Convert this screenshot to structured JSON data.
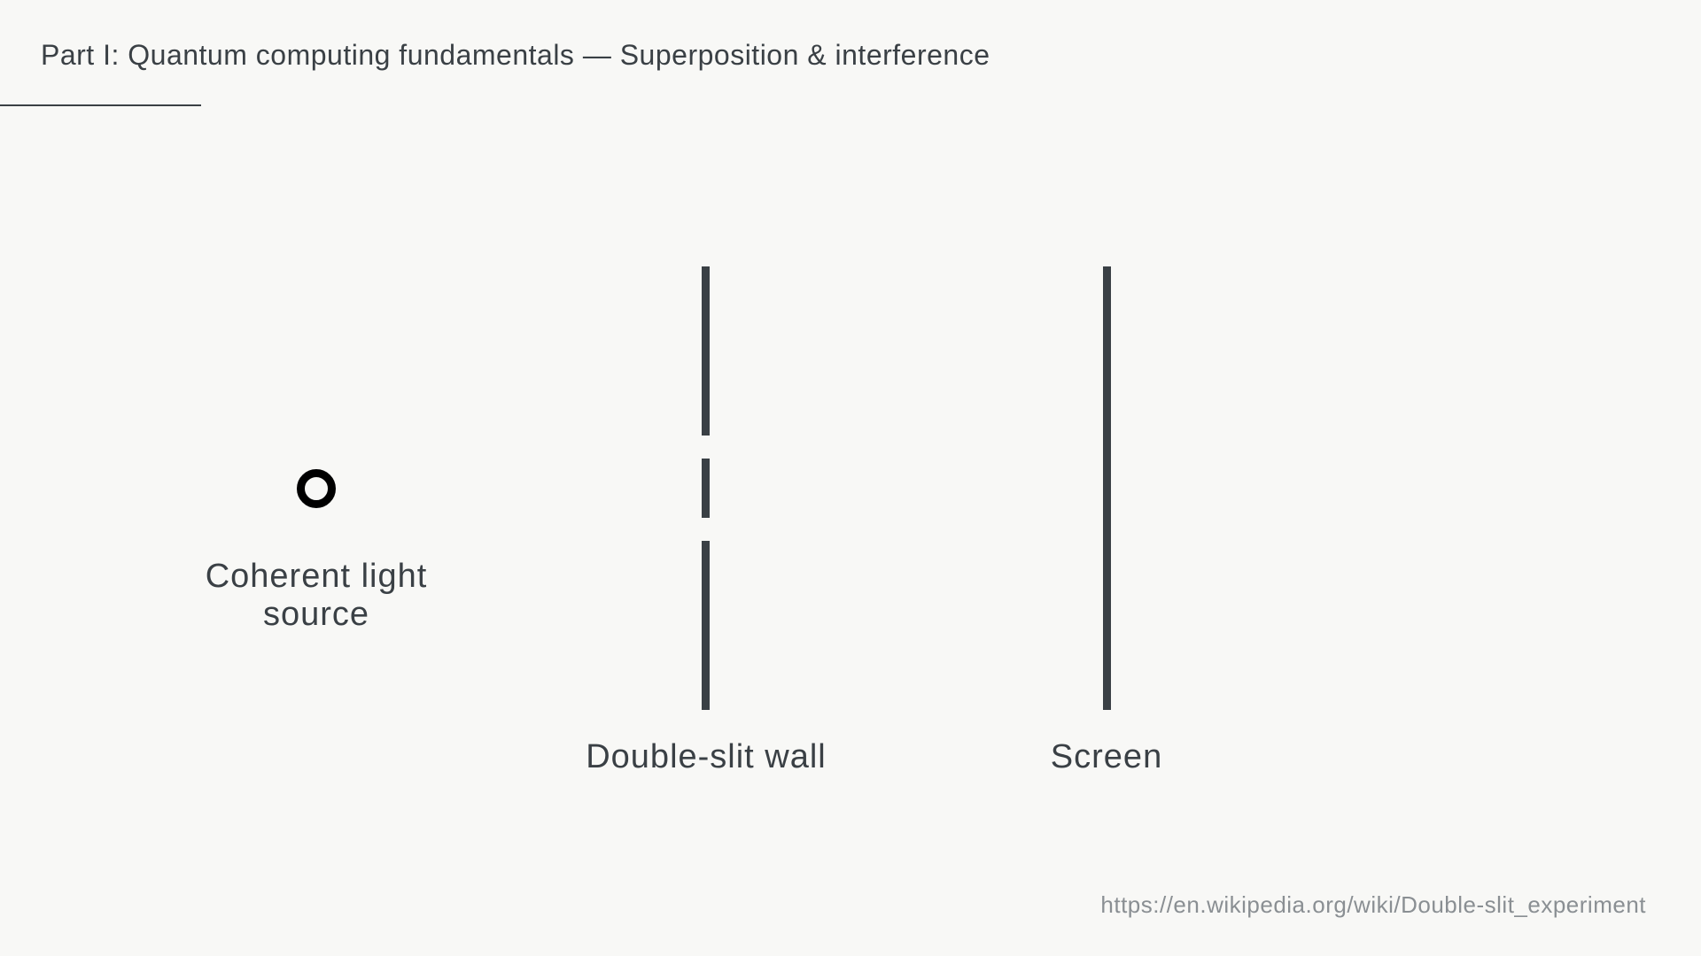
{
  "header": {
    "title": "Part I: Quantum computing fundamentals — Superposition & interference"
  },
  "diagram": {
    "source_label_line1": "Coherent light",
    "source_label_line2": "source",
    "wall_label": "Double-slit wall",
    "screen_label": "Screen",
    "line_color": "#3a4045",
    "source_color": "#000000"
  },
  "footer": {
    "source_url": "https://en.wikipedia.org/wiki/Double-slit_experiment"
  }
}
